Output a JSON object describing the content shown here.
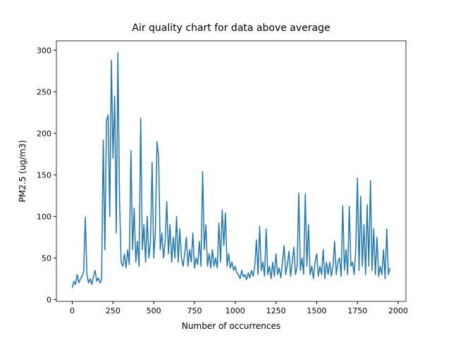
{
  "chart_data": {
    "type": "line",
    "title": "Air quality chart for data above average",
    "x_label": "Number of occurrences",
    "y_label": "PM2.5 (ug/m3)",
    "x": [
      0,
      10,
      20,
      30,
      40,
      50,
      60,
      70,
      80,
      90,
      100,
      110,
      120,
      130,
      140,
      150,
      160,
      170,
      180,
      190,
      200,
      210,
      220,
      230,
      240,
      250,
      260,
      270,
      280,
      290,
      300,
      310,
      320,
      330,
      340,
      350,
      360,
      370,
      380,
      390,
      400,
      410,
      420,
      430,
      440,
      450,
      460,
      470,
      480,
      490,
      500,
      510,
      520,
      530,
      540,
      550,
      560,
      570,
      580,
      590,
      600,
      610,
      620,
      630,
      640,
      650,
      660,
      670,
      680,
      690,
      700,
      710,
      720,
      730,
      740,
      750,
      760,
      770,
      780,
      790,
      800,
      810,
      820,
      830,
      840,
      850,
      860,
      870,
      880,
      890,
      900,
      910,
      920,
      930,
      940,
      950,
      960,
      970,
      980,
      990,
      1000,
      1010,
      1020,
      1030,
      1040,
      1050,
      1060,
      1070,
      1080,
      1090,
      1100,
      1110,
      1120,
      1130,
      1140,
      1150,
      1160,
      1170,
      1180,
      1190,
      1200,
      1210,
      1220,
      1230,
      1240,
      1250,
      1260,
      1270,
      1280,
      1290,
      1300,
      1310,
      1320,
      1330,
      1340,
      1350,
      1360,
      1370,
      1380,
      1390,
      1400,
      1410,
      1420,
      1430,
      1440,
      1450,
      1460,
      1470,
      1480,
      1490,
      1500,
      1510,
      1520,
      1530,
      1540,
      1550,
      1560,
      1570,
      1580,
      1590,
      1600,
      1610,
      1620,
      1630,
      1640,
      1650,
      1660,
      1670,
      1680,
      1690,
      1700,
      1710,
      1720,
      1730,
      1740,
      1750,
      1760,
      1770,
      1780,
      1790,
      1800,
      1810,
      1820,
      1830,
      1840,
      1850,
      1860,
      1870,
      1880,
      1890,
      1900,
      1910,
      1920,
      1930,
      1940,
      1950
    ],
    "series": [
      {
        "color": "#1f77b4",
        "values": [
          14,
          22,
          18,
          30,
          20,
          25,
          28,
          33,
          99,
          30,
          20,
          25,
          18,
          28,
          35,
          22,
          26,
          20,
          24,
          192,
          60,
          215,
          222,
          100,
          288,
          170,
          245,
          80,
          297,
          120,
          45,
          40,
          55,
          38,
          60,
          42,
          179,
          60,
          110,
          45,
          70,
          40,
          218,
          60,
          90,
          45,
          100,
          50,
          70,
          165,
          50,
          80,
          190,
          172,
          60,
          80,
          50,
          70,
          118,
          55,
          90,
          45,
          75,
          50,
          100,
          45,
          85,
          50,
          40,
          55,
          75,
          40,
          60,
          45,
          80,
          38,
          50,
          42,
          70,
          40,
          154,
          60,
          90,
          40,
          55,
          38,
          60,
          40,
          50,
          38,
          92,
          45,
          108,
          65,
          104,
          40,
          55,
          38,
          45,
          35,
          40,
          32,
          30,
          25,
          35,
          27,
          30,
          24,
          32,
          26,
          35,
          28,
          40,
          72,
          30,
          88,
          35,
          45,
          28,
          85,
          30,
          40,
          25,
          45,
          28,
          55,
          30,
          38,
          26,
          45,
          65,
          30,
          42,
          58,
          28,
          45,
          63,
          30,
          40,
          128,
          35,
          50,
          30,
          127,
          40,
          90,
          30,
          40,
          25,
          45,
          55,
          28,
          40,
          30,
          60,
          25,
          45,
          30,
          45,
          28,
          40,
          70,
          30,
          45,
          50,
          28,
          113,
          35,
          60,
          30,
          112,
          40,
          45,
          30,
          60,
          146,
          35,
          124,
          40,
          90,
          30,
          114,
          40,
          143,
          35,
          85,
          30,
          75,
          28,
          40,
          30,
          60,
          25,
          85,
          30,
          38
        ]
      }
    ],
    "xlim": [
      -97.5,
      2047.5
    ],
    "ylim": [
      -2.25,
      311.25
    ],
    "xticks": [
      0,
      250,
      500,
      750,
      1000,
      1250,
      1500,
      1750,
      2000
    ],
    "yticks": [
      0,
      50,
      100,
      150,
      200,
      250,
      300
    ],
    "grid": false
  }
}
